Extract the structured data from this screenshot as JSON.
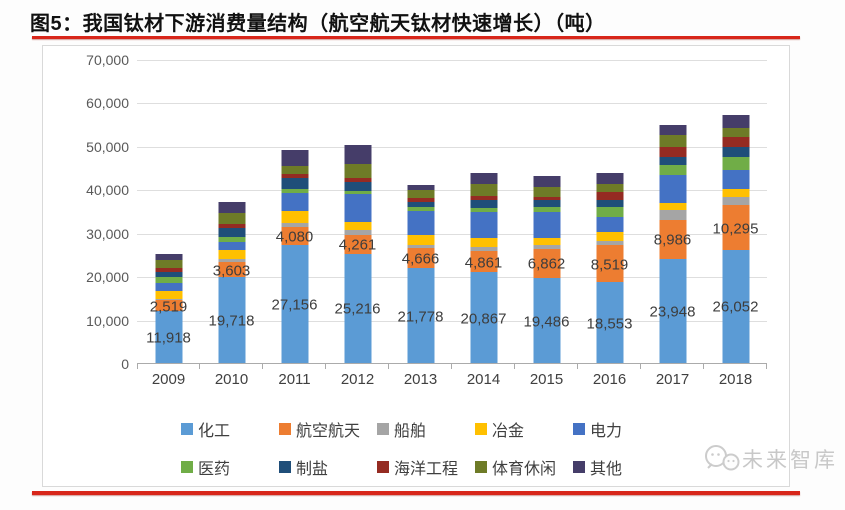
{
  "title": "图5：我国钛材下游消费量结构（航空航天钛材快速增长）（吨）",
  "watermark": {
    "text": "未来智库"
  },
  "colors": {
    "accent_red": "#d8261a",
    "grid": "#dedede",
    "axis": "#ababab",
    "box_border": "#d9d9d9",
    "tick_text": "#595959",
    "label_text": "#3d3d3d",
    "watermark_text": "#c8c8c8"
  },
  "chart_data": {
    "type": "bar",
    "stacked": true,
    "title": "我国钛材下游消费量结构",
    "unit": "吨",
    "xlabel": "",
    "ylabel": "",
    "grid": true,
    "legend_position": "bottom",
    "ylim": [
      0,
      70000
    ],
    "yticks": [
      {
        "value": 0,
        "label": "0"
      },
      {
        "value": 10000,
        "label": "10,000"
      },
      {
        "value": 20000,
        "label": "20,000"
      },
      {
        "value": 30000,
        "label": "30,000"
      },
      {
        "value": 40000,
        "label": "40,000"
      },
      {
        "value": 50000,
        "label": "50,000"
      },
      {
        "value": 60000,
        "label": "60,000"
      },
      {
        "value": 70000,
        "label": "70,000"
      }
    ],
    "categories": [
      "2009",
      "2010",
      "2011",
      "2012",
      "2013",
      "2014",
      "2015",
      "2016",
      "2017",
      "2018"
    ],
    "series": [
      {
        "name": "化工",
        "color": "#5b9bd5",
        "values": [
          11918,
          19718,
          27156,
          25216,
          21778,
          20867,
          19486,
          18553,
          23948,
          26052
        ]
      },
      {
        "name": "航空航天",
        "color": "#ed7d31",
        "values": [
          2519,
          3603,
          4080,
          4261,
          4666,
          4861,
          6862,
          8519,
          8986,
          10295
        ]
      },
      {
        "name": "船舶",
        "color": "#a5a5a5",
        "values": [
          200,
          530,
          950,
          1150,
          840,
          1000,
          880,
          1140,
          2300,
          1900
        ]
      },
      {
        "name": "冶金",
        "color": "#ffc000",
        "values": [
          2000,
          2100,
          2900,
          1900,
          2200,
          2070,
          1610,
          1930,
          1540,
          1800
        ]
      },
      {
        "name": "电力",
        "color": "#4472c4",
        "values": [
          1800,
          1900,
          4050,
          6300,
          5530,
          5990,
          5850,
          3570,
          6530,
          4300
        ]
      },
      {
        "name": "医药",
        "color": "#70ad47",
        "values": [
          1300,
          1200,
          870,
          770,
          920,
          920,
          1170,
          2140,
          2300,
          3200
        ]
      },
      {
        "name": "制盐",
        "color": "#1f4e79",
        "values": [
          1300,
          2100,
          2500,
          2150,
          1080,
          1770,
          1600,
          1650,
          1920,
          2200
        ]
      },
      {
        "name": "海洋工程",
        "color": "#952b22",
        "values": [
          900,
          850,
          950,
          900,
          920,
          1000,
          730,
          1930,
          2300,
          2200
        ]
      },
      {
        "name": "体育休闲",
        "color": "#6e7b27",
        "values": [
          1800,
          2600,
          1950,
          3300,
          1920,
          2840,
          2350,
          1790,
          2690,
          2200
        ]
      },
      {
        "name": "其他",
        "color": "#453d69",
        "values": [
          1300,
          2400,
          3600,
          4200,
          1100,
          2530,
          2600,
          2500,
          2300,
          3000
        ]
      }
    ],
    "data_labels": {
      "化工": [
        "11,918",
        "19,718",
        "27,156",
        "25,216",
        "21,778",
        "20,867",
        "19,486",
        "18,553",
        "23,948",
        "26,052"
      ],
      "航空航天": [
        "2,519",
        "3,603",
        "4,080",
        "4,261",
        "4,666",
        "4,861",
        "6,862",
        "8,519",
        "8,986",
        "10,295"
      ]
    },
    "labeled_series": [
      "化工",
      "航空航天"
    ]
  }
}
